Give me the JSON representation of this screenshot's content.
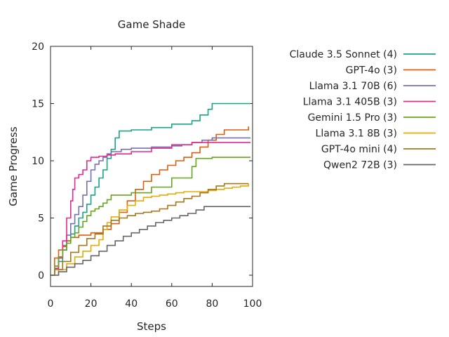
{
  "chart_data": {
    "type": "line",
    "title": "Game Shade",
    "xlabel": "Steps",
    "ylabel": "Game Progress",
    "xlim": [
      0,
      100
    ],
    "ylim": [
      0,
      20
    ],
    "xticks": [
      0,
      20,
      40,
      60,
      80,
      100
    ],
    "yticks": [
      0,
      5,
      10,
      15,
      20
    ],
    "grid": false,
    "legend_position": "right",
    "series": [
      {
        "name": "Claude 3.5 Sonnet (4)",
        "color": "#1aa386",
        "x": [
          0,
          2,
          4,
          6,
          8,
          10,
          12,
          14,
          16,
          18,
          20,
          22,
          24,
          26,
          28,
          30,
          32,
          34,
          40,
          50,
          60,
          70,
          74,
          78,
          80,
          90,
          99
        ],
        "y": [
          0,
          0.6,
          1.2,
          2.2,
          3.0,
          3.6,
          4.3,
          5.0,
          5.5,
          6.2,
          7.0,
          7.7,
          8.5,
          9.2,
          10.2,
          11.0,
          12.0,
          12.6,
          12.7,
          12.9,
          13.2,
          13.5,
          14.0,
          14.5,
          15.0,
          15.0,
          15.0
        ]
      },
      {
        "name": "GPT-4o (3)",
        "color": "#d95f0e",
        "x": [
          0,
          2,
          4,
          6,
          8,
          10,
          14,
          20,
          26,
          30,
          34,
          38,
          42,
          46,
          50,
          54,
          58,
          62,
          66,
          70,
          74,
          78,
          82,
          86,
          90,
          94,
          98
        ],
        "y": [
          0,
          1.5,
          2.2,
          2.5,
          3.0,
          3.3,
          3.5,
          3.7,
          4.0,
          4.5,
          5.5,
          6.5,
          7.5,
          8.2,
          8.8,
          9.2,
          9.6,
          10.0,
          10.3,
          10.7,
          11.2,
          11.8,
          12.3,
          12.7,
          12.7,
          12.7,
          13.0
        ]
      },
      {
        "name": "Llama 3.1 70B (6)",
        "color": "#7570b3",
        "x": [
          0,
          2,
          4,
          6,
          8,
          10,
          12,
          14,
          16,
          18,
          20,
          22,
          24,
          26,
          28,
          30,
          35,
          40,
          50,
          60,
          65,
          70,
          75,
          80,
          90,
          99
        ],
        "y": [
          0,
          0.8,
          1.6,
          2.6,
          3.5,
          4.5,
          5.3,
          6.0,
          7.0,
          8.2,
          9.2,
          9.7,
          10.0,
          10.3,
          10.6,
          10.8,
          11.0,
          11.1,
          11.2,
          11.3,
          11.4,
          11.6,
          11.8,
          12.0,
          12.0,
          12.0
        ]
      },
      {
        "name": "Llama 3.1 405B (3)",
        "color": "#e7298a",
        "x": [
          0,
          2,
          4,
          6,
          8,
          10,
          11,
          12,
          14,
          16,
          18,
          20,
          24,
          28,
          32,
          40,
          50,
          60,
          70,
          80,
          90,
          99
        ],
        "y": [
          0,
          0.6,
          1.5,
          3.0,
          5.0,
          6.5,
          7.5,
          8.5,
          8.8,
          9.2,
          10.0,
          10.3,
          10.4,
          10.5,
          10.6,
          10.8,
          11.1,
          11.4,
          11.6,
          11.6,
          11.6,
          11.6
        ]
      },
      {
        "name": "Gemini 1.5 Pro (3)",
        "color": "#66a61e",
        "x": [
          0,
          2,
          4,
          6,
          8,
          10,
          12,
          14,
          16,
          18,
          20,
          22,
          24,
          26,
          28,
          30,
          40,
          50,
          60,
          70,
          72,
          80,
          90,
          99
        ],
        "y": [
          0,
          0.8,
          1.6,
          2.2,
          2.8,
          3.3,
          3.7,
          4.2,
          4.7,
          5.2,
          5.6,
          5.8,
          6.0,
          6.3,
          6.6,
          7.0,
          7.2,
          7.7,
          8.5,
          9.5,
          10.2,
          10.3,
          10.3,
          10.3
        ]
      },
      {
        "name": "Llama 3.1 8B (3)",
        "color": "#e6ab02",
        "x": [
          0,
          4,
          8,
          12,
          16,
          20,
          24,
          26,
          28,
          30,
          34,
          38,
          42,
          46,
          50,
          54,
          58,
          62,
          66,
          70,
          74,
          78,
          82,
          86,
          90,
          94,
          98
        ],
        "y": [
          0,
          0.5,
          1.0,
          1.6,
          2.1,
          2.6,
          3.1,
          4.0,
          4.6,
          5.1,
          5.7,
          6.1,
          6.5,
          6.8,
          6.9,
          7.0,
          7.1,
          7.2,
          7.3,
          7.3,
          7.3,
          7.4,
          7.5,
          7.6,
          7.7,
          7.8,
          8.0
        ]
      },
      {
        "name": "GPT-4o mini (4)",
        "color": "#a6761d",
        "x": [
          0,
          2,
          6,
          10,
          14,
          18,
          22,
          26,
          30,
          34,
          38,
          42,
          46,
          50,
          54,
          58,
          62,
          66,
          70,
          74,
          78,
          82,
          86,
          90,
          94,
          98
        ],
        "y": [
          0,
          0.5,
          1.2,
          2.0,
          2.6,
          3.2,
          3.6,
          4.3,
          4.8,
          5.0,
          5.2,
          5.4,
          5.5,
          5.6,
          5.8,
          6.1,
          6.4,
          6.7,
          6.9,
          7.2,
          7.5,
          7.8,
          8.0,
          8.0,
          8.0,
          8.0
        ]
      },
      {
        "name": "Qwen2 72B (3)",
        "color": "#666666",
        "x": [
          0,
          4,
          8,
          12,
          16,
          20,
          24,
          28,
          32,
          36,
          40,
          44,
          48,
          52,
          56,
          60,
          64,
          68,
          72,
          76,
          80,
          85,
          90,
          95,
          99
        ],
        "y": [
          0,
          0.3,
          0.7,
          1.0,
          1.3,
          1.7,
          2.1,
          2.6,
          3.0,
          3.4,
          3.7,
          4.0,
          4.3,
          4.6,
          4.8,
          5.0,
          5.2,
          5.4,
          5.7,
          6.0,
          6.0,
          6.0,
          6.0,
          6.0,
          6.0
        ]
      }
    ]
  }
}
